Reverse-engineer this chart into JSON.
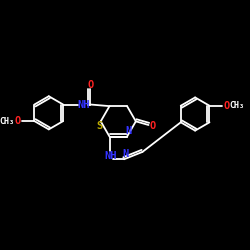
{
  "background_color": "#000000",
  "bond_color": "#ffffff",
  "label_color_N": "#3333ff",
  "label_color_O": "#ff2222",
  "label_color_S": "#bbaa00",
  "label_color_C": "#ffffff",
  "figsize": [
    2.5,
    2.5
  ],
  "dpi": 100,
  "xlim": [
    0,
    10
  ],
  "ylim": [
    0,
    10
  ]
}
